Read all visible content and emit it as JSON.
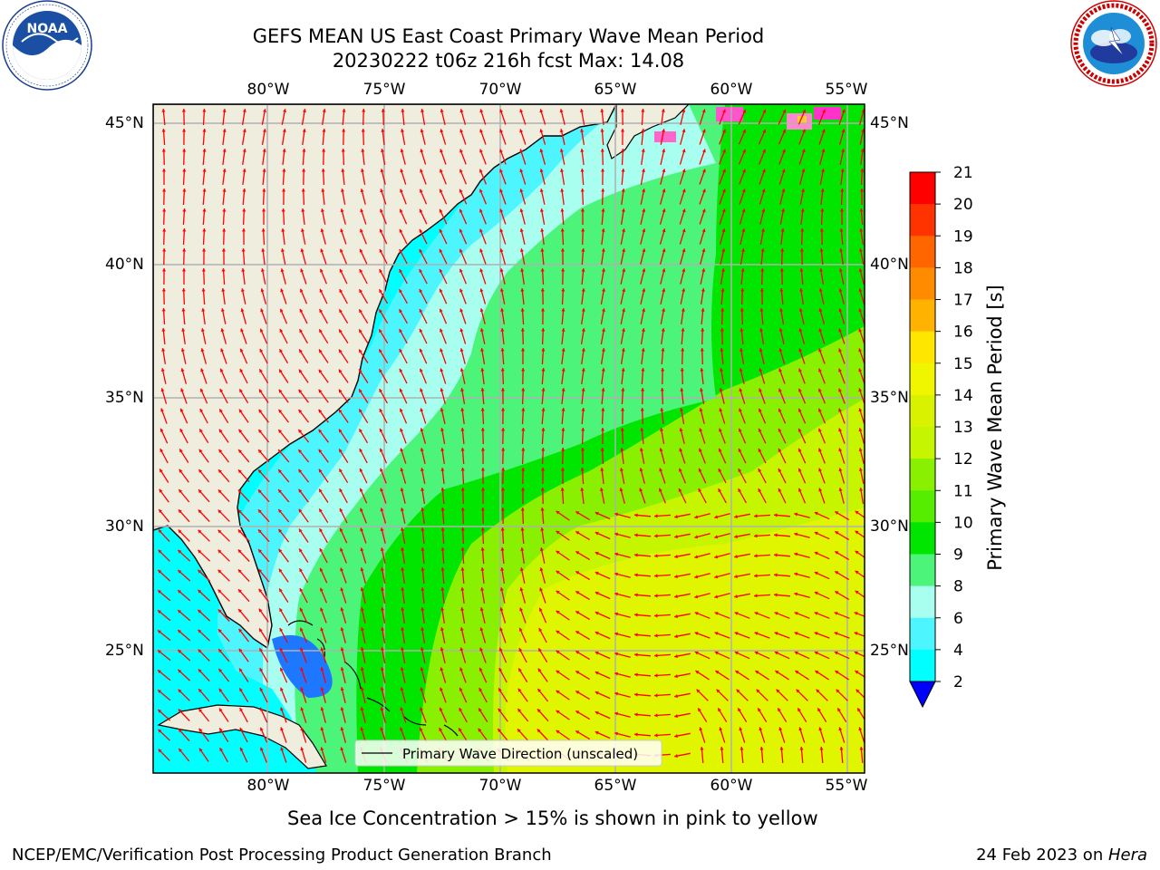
{
  "header": {
    "title_line1": "GEFS MEAN US East Coast Primary Wave Mean Period",
    "title_line2": "20230222 t06z 216h fcst   Max: 14.08"
  },
  "logos": {
    "left": {
      "name": "NOAA",
      "text": "NOAA",
      "ring_text": "NATIONAL OCEANIC AND ATMOSPHERIC ADMINISTRATION · U.S. DEPARTMENT OF COMMERCE"
    },
    "right": {
      "name": "National Weather Service",
      "ring_text": "NATIONAL WEATHER SERVICE"
    }
  },
  "map": {
    "lon_labels": [
      "80°W",
      "75°W",
      "70°W",
      "65°W",
      "60°W",
      "55°W"
    ],
    "lat_labels": [
      "45°N",
      "40°N",
      "35°N",
      "30°N",
      "25°N"
    ],
    "legend_label": "Primary Wave Direction (unscaled)",
    "colors": {
      "land": "#efedde",
      "arrow": "#ff0000",
      "grid": "#b0b0b0"
    }
  },
  "colorbar": {
    "label": "Primary Wave Mean Period [s]",
    "ticks": [
      "21",
      "20",
      "19",
      "18",
      "17",
      "16",
      "15",
      "14",
      "13",
      "12",
      "11",
      "10",
      "9",
      "8",
      "6",
      "4",
      "2"
    ],
    "colors": [
      "#ff0000",
      "#ff3300",
      "#ff6600",
      "#ff8c00",
      "#ffb300",
      "#ffe600",
      "#f0f500",
      "#d9f200",
      "#c6f500",
      "#88f000",
      "#56ed00",
      "#00e600",
      "#4cf57a",
      "#a8fff0",
      "#4df5ff",
      "#00ffff",
      "#0088ff",
      "#0000ff"
    ]
  },
  "notes": {
    "sea_ice": "Sea Ice Concentration > 15% is shown in pink to yellow",
    "footer_left": "NCEP/EMC/Verification Post Processing Product Generation Branch",
    "footer_right_prefix": "24 Feb 2023 on ",
    "footer_right_italic": "Hera"
  }
}
